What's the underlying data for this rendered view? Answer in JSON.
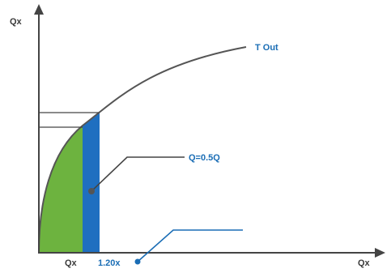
{
  "labels": {
    "y_axis": "Qx",
    "x_axis": "Qx",
    "curve": "T Out",
    "x_tick_1": "Qx",
    "x_tick_2": "1.20x",
    "callout": "Q=0.5Q"
  },
  "colors": {
    "green_area": "#6db33f",
    "blue_area": "#1f6fc0",
    "axis": "#444444",
    "curve": "#555555",
    "guide_lines": "#444444",
    "callout_line": "#444444",
    "pointer_line": "#1a6db5",
    "marker_dark": "#555555",
    "marker_blue": "#1a6db5"
  }
}
